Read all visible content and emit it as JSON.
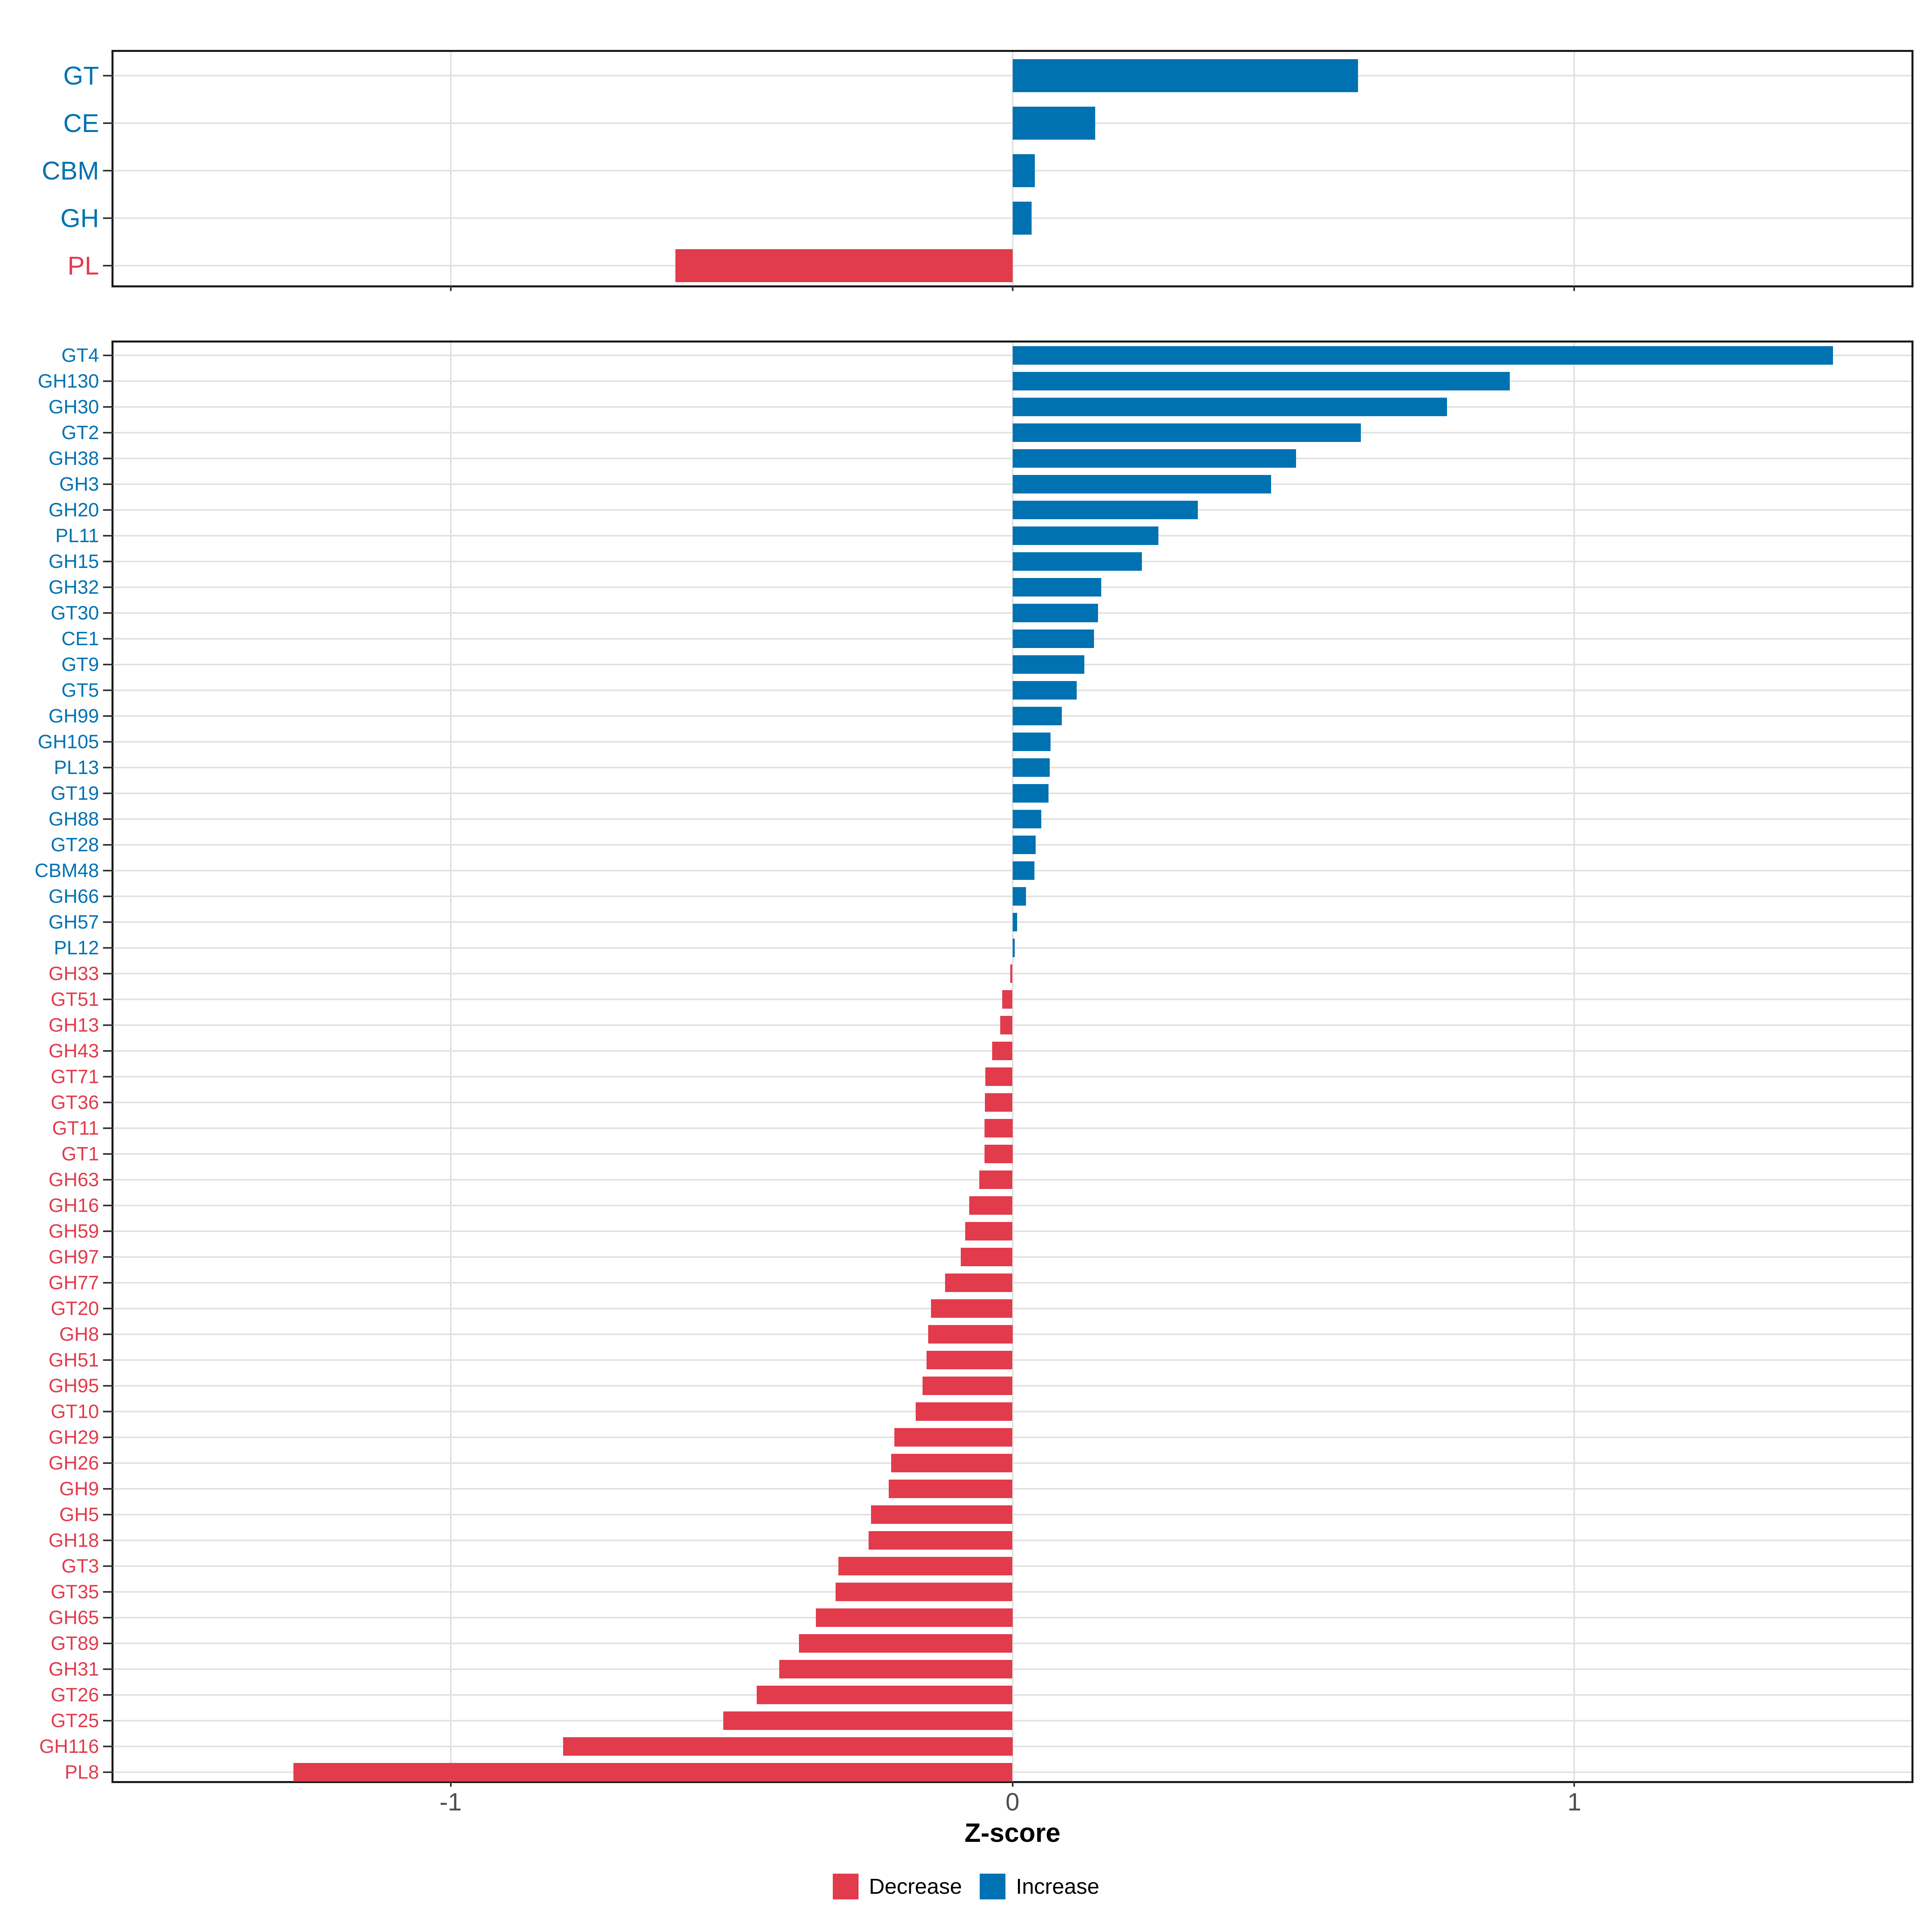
{
  "figure": {
    "xlabel": "Z-score",
    "background": "#FFFFFF",
    "legend_position": "bottom"
  },
  "axis": {
    "min": -1.6,
    "max": 1.6,
    "ticks": [
      -1,
      0,
      1
    ],
    "tick_labels": [
      "-1",
      "0",
      "1"
    ],
    "tick_label_color": "#4D4D4D"
  },
  "colors": {
    "increase": "#0072B2",
    "decrease": "#E23B4C",
    "gridline": "#E2E2E2",
    "border": "#1A1A1A",
    "tick": "#333333"
  },
  "legend": {
    "items": [
      {
        "label": "Decrease",
        "color": "#E23B4C"
      },
      {
        "label": "Increase",
        "color": "#0072B2"
      }
    ]
  },
  "chart_data": [
    {
      "type": "bar",
      "orientation": "horizontal",
      "name": "cazyme-classes",
      "xlabel": "Z-score",
      "xlim": [
        -1.6,
        1.6
      ],
      "grid": true,
      "categories": [
        "GT",
        "CE",
        "CBM",
        "GH",
        "PL"
      ],
      "values": [
        0.615,
        0.147,
        0.04,
        0.034,
        -0.6
      ]
    },
    {
      "type": "bar",
      "orientation": "horizontal",
      "name": "cazyme-families",
      "xlabel": "Z-score",
      "xlim": [
        -1.6,
        1.6
      ],
      "grid": true,
      "categories": [
        "GT4",
        "GH130",
        "GH30",
        "GT2",
        "GH38",
        "GH3",
        "GH20",
        "PL11",
        "GH15",
        "GH32",
        "GT30",
        "CE1",
        "GT9",
        "GT5",
        "GH99",
        "GH105",
        "PL13",
        "GT19",
        "GH88",
        "GT28",
        "CBM48",
        "GH66",
        "GH57",
        "PL12",
        "GH33",
        "GT51",
        "GH13",
        "GH43",
        "GT71",
        "GT36",
        "GT11",
        "GT1",
        "GH63",
        "GH16",
        "GH59",
        "GH97",
        "GH77",
        "GT20",
        "GH8",
        "GH51",
        "GH95",
        "GT10",
        "GH29",
        "GH26",
        "GH9",
        "GH5",
        "GH18",
        "GT3",
        "GT35",
        "GH65",
        "GT89",
        "GH31",
        "GT26",
        "GT25",
        "GH116",
        "PL8"
      ],
      "values": [
        1.46,
        0.885,
        0.773,
        0.62,
        0.505,
        0.46,
        0.33,
        0.26,
        0.23,
        0.158,
        0.152,
        0.145,
        0.128,
        0.114,
        0.088,
        0.068,
        0.066,
        0.064,
        0.051,
        0.041,
        0.039,
        0.024,
        0.008,
        0.004,
        -0.004,
        -0.018,
        -0.022,
        -0.036,
        -0.048,
        -0.049,
        -0.05,
        -0.05,
        -0.059,
        -0.077,
        -0.084,
        -0.092,
        -0.12,
        -0.145,
        -0.15,
        -0.153,
        -0.16,
        -0.172,
        -0.21,
        -0.216,
        -0.22,
        -0.252,
        -0.256,
        -0.31,
        -0.315,
        -0.35,
        -0.38,
        -0.415,
        -0.455,
        -0.515,
        -0.8,
        -1.28
      ]
    }
  ]
}
